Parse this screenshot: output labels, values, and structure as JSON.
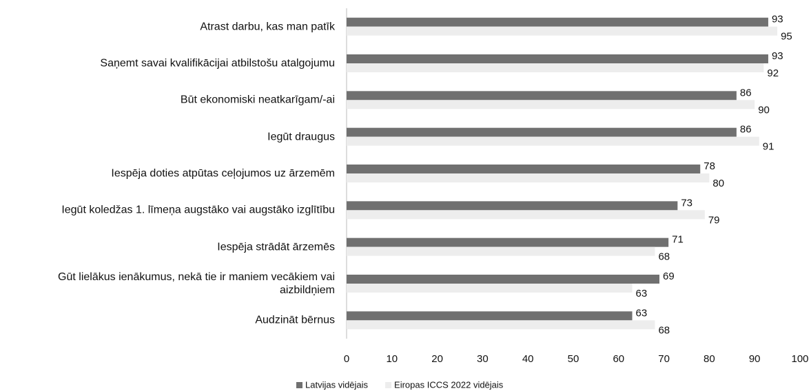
{
  "chart_data": {
    "type": "hbar",
    "categories": [
      "Atrast darbu, kas man patīk",
      "Saņemt savai kvalifikācijai atbilstošu atalgojumu",
      "Būt ekonomiski neatkarīgam/-ai",
      "Iegūt draugus",
      "Iespēja doties atpūtas ceļojumos uz ārzemēm",
      "Iegūt koledžas 1. līmeņa augstāko vai augstāko izglītību",
      "Iespēja strādāt ārzemēs",
      "Gūt lielākus ienākumus, nekā tie ir maniem vecākiem vai aizbildņiem",
      "Audzināt bērnus"
    ],
    "series": [
      {
        "name": "Latvijas vidējais",
        "color": "#707070",
        "values": [
          93,
          93,
          86,
          86,
          78,
          73,
          71,
          69,
          63
        ]
      },
      {
        "name": "Eiropas ICCS 2022 vidējais",
        "color": "#ededed",
        "values": [
          95,
          92,
          90,
          91,
          80,
          79,
          68,
          63,
          68
        ]
      }
    ],
    "xlim": [
      0,
      100
    ],
    "xticks": [
      0,
      10,
      20,
      30,
      40,
      50,
      60,
      70,
      80,
      90,
      100
    ],
    "grid": false,
    "legend": "bottom"
  }
}
